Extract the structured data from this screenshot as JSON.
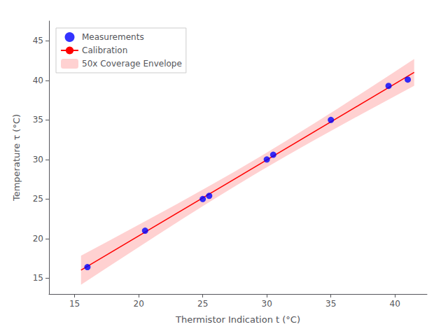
{
  "chart_data": {
    "type": "scatter",
    "xlabel": "Thermistor Indication t (°C)",
    "ylabel": "Temperature τ (°C)",
    "xlim": [
      13.0,
      42.5
    ],
    "ylim": [
      13.0,
      47.5
    ],
    "xticks": [
      15,
      20,
      25,
      30,
      35,
      40
    ],
    "yticks": [
      15,
      20,
      25,
      30,
      35,
      40,
      45
    ],
    "grid": false,
    "legend": "upper left",
    "series": [
      {
        "name": "Measurements",
        "type": "scatter",
        "color": "blue",
        "x": [
          16.0,
          20.5,
          25.0,
          25.5,
          30.0,
          30.5,
          35.0,
          39.5,
          41.0
        ],
        "values": [
          16.4,
          21.0,
          25.0,
          25.4,
          30.0,
          30.6,
          35.0,
          39.3,
          40.1
        ]
      },
      {
        "name": "Calibration",
        "type": "line",
        "color": "red",
        "x": [
          15.5,
          41.5
        ],
        "values": [
          16.00968,
          41.00188
        ]
      },
      {
        "name": "50x Coverage Envelope",
        "type": "band",
        "color": "#ffb3b3",
        "x": [
          15.5,
          17.5,
          19.5,
          21.5,
          23.5,
          25.5,
          27.5,
          29.5,
          31.5,
          33.5,
          35.5,
          37.5,
          39.5,
          41.5
        ],
        "lower": [
          14.1735,
          16.29281,
          18.40173,
          20.49574,
          22.56801,
          24.60888,
          26.60638,
          28.54978,
          30.43554,
          32.26973,
          34.06395,
          35.82974,
          37.57597,
          39.30874
        ],
        "upper": [
          17.84586,
          19.57151,
          21.30753,
          23.05848,
          24.83117,
          26.63524,
          28.4827,
          30.38426,
          32.34344,
          34.35421,
          36.40495,
          38.4841,
          40.58283,
          42.69502
        ]
      }
    ]
  }
}
